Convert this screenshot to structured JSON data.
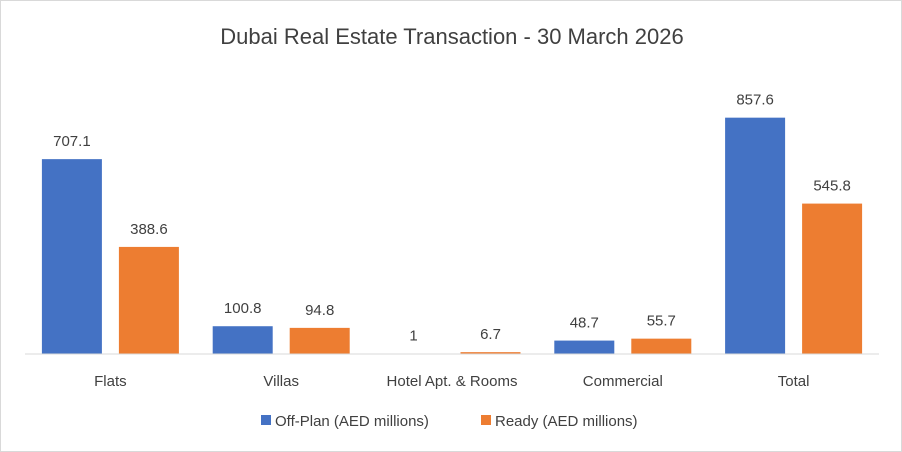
{
  "chart_data": {
    "type": "bar",
    "title": "Dubai Real Estate Transaction  - 30 March 2026",
    "categories": [
      "Flats",
      "Villas",
      "Hotel Apt. & Rooms",
      "Commercial",
      "Total"
    ],
    "series": [
      {
        "name": "Off-Plan (AED millions)",
        "color": "#4472c4",
        "values": [
          707.1,
          100.8,
          1,
          48.7,
          857.6
        ],
        "labels": [
          "707.1",
          "100.8",
          "1",
          "48.7",
          "857.6"
        ]
      },
      {
        "name": "Ready (AED millions)",
        "color": "#ed7d31",
        "values": [
          388.6,
          94.8,
          6.7,
          55.7,
          545.8
        ],
        "labels": [
          "388.6",
          "94.8",
          "6.7",
          "55.7",
          "545.8"
        ]
      }
    ],
    "ylim": [
      0,
      860
    ],
    "grid": false,
    "data_labels": true,
    "legend_position": "bottom"
  }
}
